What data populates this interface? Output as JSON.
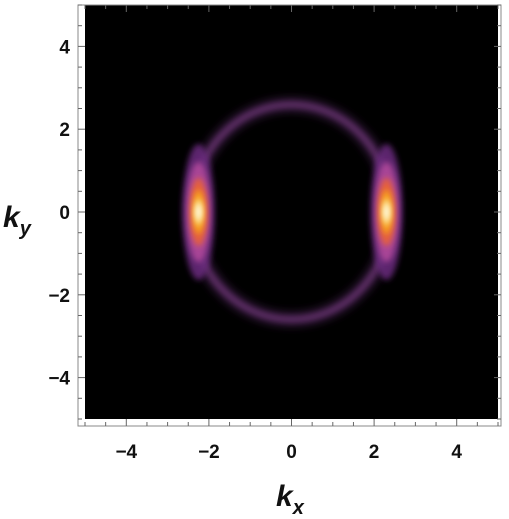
{
  "chart_data": {
    "type": "heatmap",
    "title": "",
    "xlabel": "k",
    "xlabel_sub": "x",
    "ylabel": "k",
    "ylabel_sub": "y",
    "xlim": [
      -5,
      5
    ],
    "ylim": [
      -5,
      5
    ],
    "x_ticks": [
      -4,
      -2,
      0,
      2,
      4
    ],
    "y_ticks": [
      -4,
      -2,
      0,
      2,
      4
    ],
    "x_tick_labels": [
      "−4",
      "−2",
      "0",
      "2",
      "4"
    ],
    "y_tick_labels": [
      "−4",
      "−2",
      "0",
      "2",
      "4"
    ],
    "colormap": "inferno",
    "colormap_stops": [
      "#000000",
      "#2a0a3d",
      "#6a2c7e",
      "#b0489a",
      "#e8613a",
      "#f7a21d",
      "#fde49a",
      "#fffbe6"
    ],
    "features": {
      "ring": {
        "center": [
          0,
          0
        ],
        "radius": 2.6,
        "intensity": 0.42
      },
      "hotspots": [
        {
          "kx": -2.25,
          "ky": 0,
          "intensity": 1.0
        },
        {
          "kx": 2.3,
          "ky": 0,
          "intensity": 1.0
        }
      ]
    }
  }
}
